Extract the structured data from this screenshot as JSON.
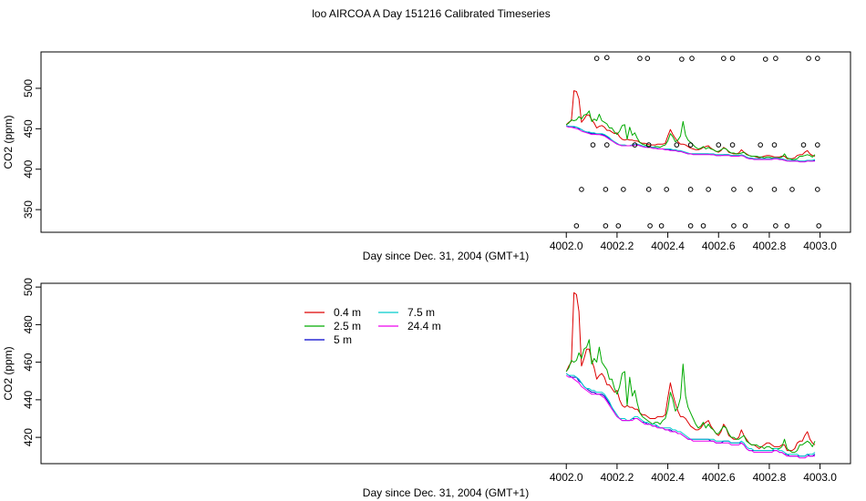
{
  "title": "loo AIRCOA A  Day 151216  Calibrated Timeseries",
  "colors": {
    "0.4 m": "#dd0000",
    "2.5 m": "#00aa00",
    "5 m": "#0000cc",
    "7.5 m": "#00cccc",
    "24.4 m": "#ee00ee",
    "markers": "#000000"
  },
  "chart_data": [
    {
      "type": "line",
      "panel": "top",
      "xlabel": "Day since Dec. 31, 2004 (GMT+1)",
      "ylabel": "CO2 (ppm)",
      "xlim": [
        3999.93,
        4003.12
      ],
      "ylim": [
        322,
        545
      ],
      "x_ticks": [
        4002.0,
        4002.2,
        4002.4,
        4002.6,
        4002.8,
        4003.0
      ],
      "x_tick_labels": [
        "4002.0",
        "4002.2",
        "4002.4",
        "4002.6",
        "4002.8",
        "4003.0"
      ],
      "y_ticks": [
        350,
        400,
        450,
        500
      ],
      "y_tick_labels": [
        "350",
        "400",
        "450",
        "500"
      ],
      "marker_points": [
        {
          "x": 4002.12,
          "y": 537
        },
        {
          "x": 4002.16,
          "y": 538
        },
        {
          "x": 4002.29,
          "y": 537
        },
        {
          "x": 4002.32,
          "y": 537
        },
        {
          "x": 4002.455,
          "y": 536
        },
        {
          "x": 4002.495,
          "y": 537
        },
        {
          "x": 4002.62,
          "y": 537
        },
        {
          "x": 4002.655,
          "y": 537
        },
        {
          "x": 4002.785,
          "y": 536
        },
        {
          "x": 4002.825,
          "y": 537
        },
        {
          "x": 4002.955,
          "y": 537
        },
        {
          "x": 4002.99,
          "y": 537
        },
        {
          "x": 4002.105,
          "y": 430
        },
        {
          "x": 4002.16,
          "y": 430
        },
        {
          "x": 4002.27,
          "y": 430
        },
        {
          "x": 4002.325,
          "y": 430
        },
        {
          "x": 4002.435,
          "y": 430
        },
        {
          "x": 4002.49,
          "y": 430
        },
        {
          "x": 4002.6,
          "y": 430
        },
        {
          "x": 4002.655,
          "y": 430
        },
        {
          "x": 4002.765,
          "y": 430
        },
        {
          "x": 4002.82,
          "y": 430
        },
        {
          "x": 4002.935,
          "y": 430
        },
        {
          "x": 4002.99,
          "y": 430
        },
        {
          "x": 4002.06,
          "y": 375
        },
        {
          "x": 4002.155,
          "y": 375
        },
        {
          "x": 4002.225,
          "y": 375
        },
        {
          "x": 4002.325,
          "y": 375
        },
        {
          "x": 4002.395,
          "y": 375
        },
        {
          "x": 4002.49,
          "y": 375
        },
        {
          "x": 4002.56,
          "y": 375
        },
        {
          "x": 4002.66,
          "y": 375
        },
        {
          "x": 4002.725,
          "y": 375
        },
        {
          "x": 4002.82,
          "y": 375
        },
        {
          "x": 4002.89,
          "y": 375
        },
        {
          "x": 4002.99,
          "y": 375
        },
        {
          "x": 4002.04,
          "y": 330
        },
        {
          "x": 4002.155,
          "y": 330
        },
        {
          "x": 4002.205,
          "y": 330
        },
        {
          "x": 4002.33,
          "y": 330
        },
        {
          "x": 4002.375,
          "y": 330
        },
        {
          "x": 4002.49,
          "y": 330
        },
        {
          "x": 4002.54,
          "y": 330
        },
        {
          "x": 4002.66,
          "y": 330
        },
        {
          "x": 4002.705,
          "y": 330
        },
        {
          "x": 4002.825,
          "y": 330
        },
        {
          "x": 4002.87,
          "y": 330
        },
        {
          "x": 4002.995,
          "y": 330
        }
      ]
    },
    {
      "type": "line",
      "panel": "bottom",
      "xlabel": "Day since Dec. 31, 2004 (GMT+1)",
      "ylabel": "CO2 (ppm)",
      "xlim": [
        3999.93,
        4003.12
      ],
      "ylim": [
        406,
        502
      ],
      "x_ticks": [
        4002.0,
        4002.2,
        4002.4,
        4002.6,
        4002.8,
        4003.0
      ],
      "x_tick_labels": [
        "4002.0",
        "4002.2",
        "4002.4",
        "4002.6",
        "4002.8",
        "4003.0"
      ],
      "y_ticks": [
        420,
        440,
        460,
        480,
        500
      ],
      "y_tick_labels": [
        "420",
        "440",
        "460",
        "480",
        "500"
      ],
      "legend": [
        "0.4 m",
        "2.5 m",
        "5 m",
        "7.5 m",
        "24.4 m"
      ],
      "x": [
        4002.0,
        4002.01,
        4002.02,
        4002.03,
        4002.04,
        4002.05,
        4002.06,
        4002.07,
        4002.08,
        4002.09,
        4002.1,
        4002.11,
        4002.12,
        4002.13,
        4002.14,
        4002.15,
        4002.16,
        4002.17,
        4002.18,
        4002.19,
        4002.2,
        4002.21,
        4002.22,
        4002.23,
        4002.24,
        4002.25,
        4002.26,
        4002.27,
        4002.28,
        4002.29,
        4002.3,
        4002.31,
        4002.32,
        4002.33,
        4002.34,
        4002.35,
        4002.36,
        4002.37,
        4002.38,
        4002.39,
        4002.4,
        4002.41,
        4002.42,
        4002.43,
        4002.44,
        4002.45,
        4002.46,
        4002.47,
        4002.48,
        4002.49,
        4002.5,
        4002.51,
        4002.52,
        4002.53,
        4002.54,
        4002.55,
        4002.56,
        4002.57,
        4002.58,
        4002.59,
        4002.6,
        4002.61,
        4002.62,
        4002.63,
        4002.64,
        4002.65,
        4002.66,
        4002.67,
        4002.68,
        4002.69,
        4002.7,
        4002.71,
        4002.72,
        4002.73,
        4002.74,
        4002.75,
        4002.76,
        4002.77,
        4002.78,
        4002.79,
        4002.8,
        4002.81,
        4002.82,
        4002.83,
        4002.84,
        4002.85,
        4002.86,
        4002.87,
        4002.88,
        4002.89,
        4002.9,
        4002.91,
        4002.92,
        4002.93,
        4002.94,
        4002.95,
        4002.96,
        4002.97,
        4002.98
      ],
      "series": [
        {
          "name": "0.4 m",
          "values": [
            455,
            458,
            460,
            497,
            496,
            487,
            458,
            462,
            467,
            467,
            461,
            457,
            451,
            453,
            454,
            452,
            448,
            448,
            446,
            444,
            445,
            440,
            437,
            436,
            437,
            436,
            436,
            435,
            435,
            433,
            432,
            432,
            431,
            430,
            430,
            430,
            431,
            431,
            431,
            432,
            441,
            449,
            443,
            438,
            434,
            431,
            431,
            430,
            428,
            426,
            425,
            424,
            424,
            425,
            427,
            428,
            429,
            426,
            424,
            422,
            421,
            423,
            427,
            425,
            421,
            420,
            419,
            419,
            420,
            424,
            421,
            419,
            417,
            416,
            416,
            415,
            414,
            415,
            416,
            417,
            417,
            416,
            415,
            415,
            415,
            416,
            416,
            413,
            413,
            413,
            414,
            417,
            418,
            418,
            421,
            423,
            419,
            417,
            416
          ]
        },
        {
          "name": "2.5 m",
          "values": [
            455,
            457,
            461,
            460,
            461,
            465,
            462,
            467,
            468,
            472,
            459,
            462,
            460,
            468,
            460,
            458,
            456,
            451,
            451,
            446,
            443,
            447,
            454,
            455,
            437,
            452,
            442,
            445,
            438,
            433,
            431,
            430,
            429,
            428,
            427,
            428,
            428,
            427,
            429,
            430,
            435,
            444,
            440,
            434,
            436,
            441,
            459,
            442,
            436,
            433,
            430,
            427,
            425,
            426,
            428,
            425,
            427,
            425,
            424,
            422,
            422,
            424,
            426,
            425,
            422,
            420,
            420,
            419,
            419,
            420,
            421,
            418,
            417,
            416,
            416,
            416,
            415,
            415,
            414,
            415,
            415,
            414,
            414,
            414,
            414,
            415,
            419,
            414,
            413,
            412,
            412,
            413,
            416,
            416,
            417,
            418,
            417,
            415,
            418
          ]
        },
        {
          "name": "5 m",
          "values": [
            454,
            453,
            452,
            452,
            452,
            450,
            449,
            447,
            446,
            445,
            444,
            444,
            443,
            443,
            443,
            442,
            440,
            438,
            436,
            433,
            431,
            430,
            429,
            429,
            429,
            429,
            430,
            430,
            430,
            429,
            428,
            428,
            427,
            427,
            426,
            426,
            426,
            425,
            425,
            424,
            424,
            424,
            423,
            423,
            422,
            422,
            421,
            420,
            419,
            419,
            419,
            419,
            419,
            419,
            419,
            419,
            419,
            418,
            418,
            417,
            417,
            417,
            418,
            418,
            418,
            417,
            417,
            417,
            417,
            417,
            416,
            414,
            413,
            413,
            413,
            413,
            413,
            413,
            413,
            413,
            413,
            413,
            413,
            413,
            412,
            412,
            411,
            411,
            410,
            410,
            410,
            410,
            410,
            410,
            410,
            411,
            410,
            410,
            411
          ]
        },
        {
          "name": "7.5 m",
          "values": [
            454,
            453,
            453,
            453,
            452,
            451,
            449,
            447,
            446,
            446,
            445,
            445,
            444,
            444,
            444,
            443,
            441,
            439,
            436,
            434,
            432,
            430,
            430,
            430,
            429,
            429,
            430,
            431,
            431,
            430,
            429,
            428,
            428,
            427,
            427,
            427,
            426,
            425,
            425,
            425,
            425,
            425,
            424,
            424,
            423,
            423,
            422,
            421,
            420,
            419,
            419,
            419,
            419,
            419,
            419,
            419,
            419,
            419,
            419,
            418,
            418,
            418,
            418,
            418,
            418,
            417,
            417,
            417,
            417,
            418,
            417,
            415,
            414,
            414,
            413,
            413,
            413,
            413,
            413,
            413,
            413,
            413,
            414,
            414,
            413,
            413,
            412,
            411,
            411,
            411,
            411,
            411,
            410,
            410,
            410,
            411,
            411,
            411,
            412
          ]
        },
        {
          "name": "24.4 m",
          "values": [
            453,
            452,
            452,
            451,
            450,
            449,
            447,
            446,
            445,
            444,
            443,
            443,
            443,
            443,
            442,
            441,
            439,
            437,
            435,
            433,
            431,
            430,
            429,
            429,
            429,
            429,
            429,
            430,
            430,
            429,
            428,
            427,
            427,
            427,
            426,
            426,
            425,
            425,
            425,
            424,
            424,
            423,
            423,
            423,
            422,
            422,
            421,
            420,
            419,
            419,
            418,
            418,
            418,
            418,
            418,
            418,
            418,
            418,
            418,
            417,
            417,
            417,
            417,
            417,
            417,
            416,
            416,
            416,
            416,
            417,
            416,
            414,
            413,
            413,
            412,
            412,
            412,
            412,
            412,
            412,
            412,
            412,
            413,
            413,
            412,
            412,
            411,
            410,
            410,
            410,
            410,
            410,
            409,
            409,
            409,
            410,
            410,
            410,
            410
          ]
        }
      ]
    }
  ]
}
